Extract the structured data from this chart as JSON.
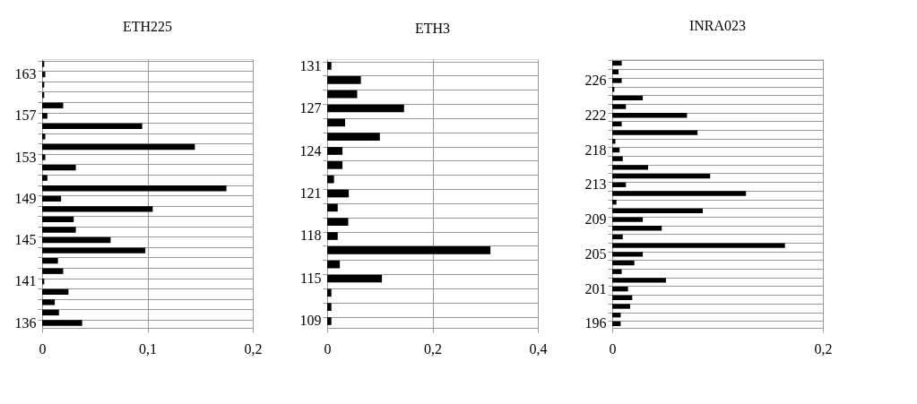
{
  "chart_data": [
    {
      "type": "bar",
      "orientation": "horizontal",
      "title": "ETH225",
      "color": "#000000",
      "grid": true,
      "categories": [
        null,
        "163",
        null,
        null,
        null,
        "157",
        null,
        null,
        null,
        "153",
        null,
        null,
        null,
        "149",
        null,
        null,
        null,
        "145",
        null,
        null,
        null,
        "141",
        null,
        null,
        null,
        "136"
      ],
      "values": [
        0.002,
        0.003,
        0.002,
        0.002,
        0.02,
        0.005,
        0.095,
        0.003,
        0.145,
        0.003,
        0.032,
        0.005,
        0.175,
        0.018,
        0.105,
        0.03,
        0.032,
        0.065,
        0.098,
        0.015,
        0.02,
        0.002,
        0.025,
        0.012,
        0.016,
        0.038
      ],
      "xlim": [
        0,
        0.2
      ],
      "xticks": [
        0,
        {
          "value": 0.1,
          "label": "0,1"
        },
        {
          "value": 0.2,
          "label": "0,2"
        }
      ]
    },
    {
      "type": "bar",
      "orientation": "horizontal",
      "title": "ETH3",
      "color": "#000000",
      "grid": true,
      "categories": [
        "131",
        null,
        null,
        "127",
        null,
        null,
        "124",
        null,
        null,
        "121",
        null,
        null,
        "118",
        null,
        null,
        "115",
        null,
        null,
        "109"
      ],
      "values": [
        0.008,
        0.064,
        0.057,
        0.146,
        0.034,
        0.1,
        0.029,
        0.029,
        0.013,
        0.041,
        0.02,
        0.04,
        0.02,
        0.31,
        0.024,
        0.104,
        0.008,
        0.008,
        0.008
      ],
      "xlim": [
        0,
        0.4
      ],
      "xticks": [
        0,
        {
          "value": 0.2,
          "label": "0,2"
        },
        {
          "value": 0.4,
          "label": "0,4"
        }
      ]
    },
    {
      "type": "bar",
      "orientation": "horizontal",
      "title": "INRA023",
      "color": "#000000",
      "grid": true,
      "categories": [
        null,
        null,
        "226",
        null,
        null,
        null,
        "222",
        null,
        null,
        null,
        "218",
        null,
        null,
        null,
        "213",
        null,
        null,
        null,
        "209",
        null,
        null,
        null,
        "205",
        null,
        null,
        null,
        "201",
        null,
        null,
        null,
        "196"
      ],
      "values": [
        0.009,
        0.006,
        0.009,
        0.002,
        0.029,
        0.013,
        0.071,
        0.009,
        0.081,
        0.003,
        0.007,
        0.01,
        0.034,
        0.093,
        0.013,
        0.127,
        0.004,
        0.086,
        0.029,
        0.047,
        0.01,
        0.164,
        0.029,
        0.021,
        0.009,
        0.051,
        0.015,
        0.019,
        0.017,
        0.008,
        0.008
      ],
      "xlim": [
        0,
        0.2
      ],
      "xticks": [
        0,
        {
          "value": 0.2,
          "label": "0,2"
        }
      ]
    }
  ]
}
